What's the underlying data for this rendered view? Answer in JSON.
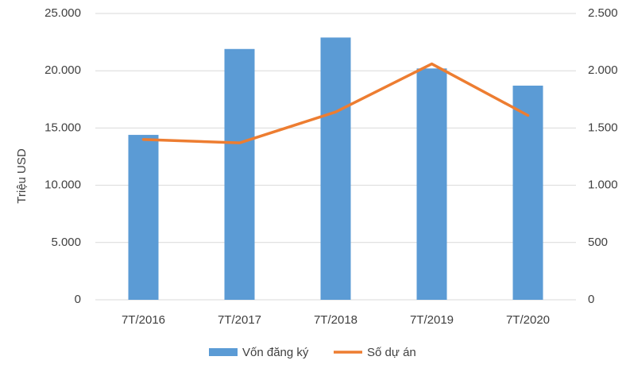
{
  "chart_data": {
    "type": "bar",
    "categories": [
      "7T/2016",
      "7T/2017",
      "7T/2018",
      "7T/2019",
      "7T/2020"
    ],
    "series": [
      {
        "name": "Vốn đăng ký",
        "type": "bar",
        "color": "#5b9bd5",
        "values": [
          14400,
          21900,
          22900,
          20200,
          18700
        ]
      },
      {
        "name": "Số dự án",
        "type": "line",
        "axis": "y2",
        "color": "#ed7d31",
        "values": [
          1400,
          1370,
          1640,
          2060,
          1610
        ]
      }
    ],
    "ylabel": "Triệu USD",
    "ylim": [
      0,
      25000
    ],
    "yticks": [
      0,
      {
        "value": 5000,
        "label": "5.000"
      },
      {
        "value": 10000,
        "label": "10.000"
      },
      {
        "value": 15000,
        "label": "15.000"
      },
      {
        "value": 20000,
        "label": "20.000"
      },
      {
        "value": 25000,
        "label": "25.000"
      }
    ],
    "y2lim": [
      0,
      2500
    ],
    "y2ticks": [
      0,
      500,
      {
        "value": 1000,
        "label": "1.000"
      },
      {
        "value": 1500,
        "label": "1.500"
      },
      {
        "value": 2000,
        "label": "2.000"
      },
      {
        "value": 2500,
        "label": "2.500"
      }
    ],
    "grid": true,
    "legend": "bottom"
  }
}
